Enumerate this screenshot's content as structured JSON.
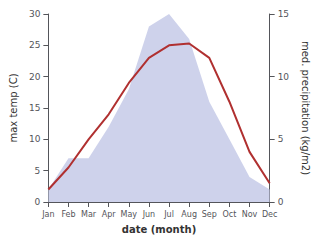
{
  "chart_data": {
    "type": "line",
    "xlabel": "date (month)",
    "ylabel": "max temp (C)",
    "y2label": "med. precipitation (kg/m2)",
    "categories": [
      "Jan",
      "Feb",
      "Mar",
      "Apr",
      "May",
      "Jun",
      "Jul",
      "Aug",
      "Sep",
      "Oct",
      "Nov",
      "Dec"
    ],
    "series": [
      {
        "type": "area",
        "color": "#c5cae8",
        "axis": "y2",
        "values": [
          1.0,
          3.5,
          3.5,
          6.0,
          9.0,
          14.0,
          15.0,
          13.0,
          8.0,
          5.0,
          2.0,
          1.0
        ]
      },
      {
        "type": "line",
        "color": "#b03030",
        "values": [
          2.0,
          5.5,
          10.0,
          14.0,
          19.0,
          23.0,
          25.0,
          25.3,
          23.0,
          16.0,
          8.0,
          3.0
        ]
      }
    ],
    "ylim": [
      0,
      30
    ],
    "yticks": [
      0,
      5,
      10,
      15,
      20,
      25,
      30
    ],
    "y2lim": [
      0,
      15
    ],
    "y2ticks": [
      0,
      5,
      10,
      15
    ],
    "grid": false
  }
}
